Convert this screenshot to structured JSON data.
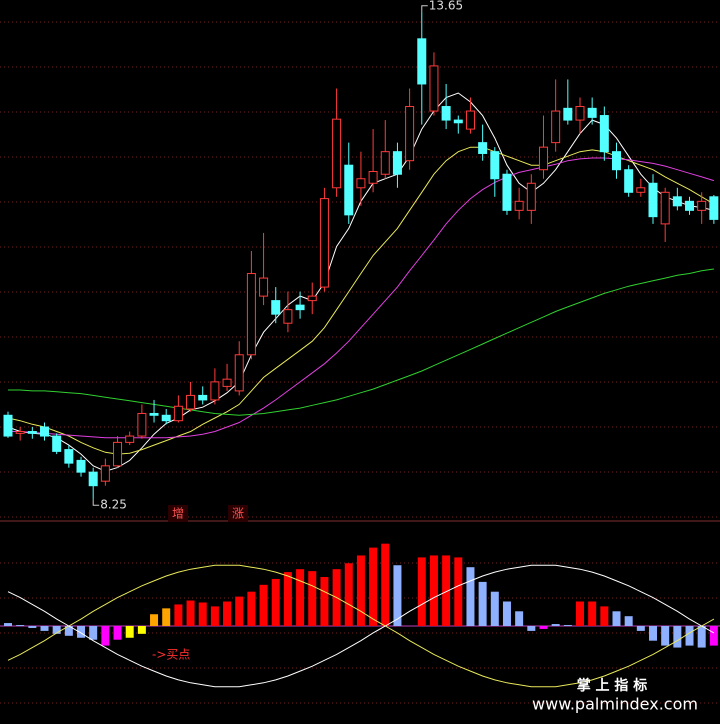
{
  "chart_data": [
    {
      "type": "candlestick",
      "up_color": "#ff3b3b",
      "down_color": "#54ffff",
      "ylim": [
        8.02,
        13.78
      ],
      "grid": true,
      "high_label": "13.65",
      "low_label": "8.25",
      "open": [
        9.18,
        8.98,
        9.0,
        9.05,
        8.95,
        8.8,
        8.68,
        8.55,
        8.45,
        8.62,
        8.88,
        8.95,
        9.2,
        9.18,
        9.12,
        9.25,
        9.4,
        9.35,
        9.5,
        9.45,
        9.85,
        10.5,
        10.45,
        10.2,
        10.4,
        10.45,
        10.6,
        11.7,
        11.95,
        11.7,
        11.75,
        11.85,
        12.1,
        12.0,
        13.35,
        12.55,
        12.6,
        12.45,
        12.35,
        12.2,
        12.1,
        11.85,
        11.45,
        11.45,
        11.9,
        12.2,
        12.58,
        12.45,
        12.58,
        12.5,
        12.1,
        11.9,
        11.65,
        11.75,
        11.3,
        11.6,
        11.55,
        11.45,
        11.6
      ],
      "close": [
        8.95,
        9.0,
        8.98,
        8.95,
        8.78,
        8.65,
        8.55,
        8.4,
        8.62,
        8.88,
        8.95,
        9.2,
        9.18,
        9.12,
        9.28,
        9.4,
        9.35,
        9.55,
        9.58,
        9.85,
        10.75,
        10.7,
        10.3,
        10.35,
        10.35,
        10.5,
        11.58,
        12.46,
        11.4,
        11.8,
        11.88,
        12.1,
        11.85,
        12.6,
        12.85,
        13.05,
        12.45,
        12.42,
        12.55,
        12.08,
        11.8,
        11.45,
        11.55,
        11.75,
        12.15,
        12.55,
        12.45,
        12.6,
        12.48,
        12.1,
        11.9,
        11.65,
        11.7,
        11.38,
        11.65,
        11.5,
        11.45,
        11.55,
        11.35
      ],
      "high": [
        9.22,
        9.05,
        9.05,
        9.1,
        8.98,
        8.85,
        8.72,
        8.6,
        8.7,
        8.95,
        9.0,
        9.3,
        9.35,
        9.25,
        9.4,
        9.55,
        9.5,
        9.7,
        9.75,
        10.0,
        11.0,
        11.2,
        10.6,
        10.55,
        10.55,
        10.65,
        11.7,
        12.8,
        12.2,
        12.1,
        12.35,
        12.45,
        12.2,
        12.8,
        13.65,
        13.2,
        12.85,
        12.5,
        12.7,
        12.4,
        12.15,
        11.9,
        11.7,
        11.85,
        12.5,
        12.9,
        12.9,
        12.7,
        12.7,
        12.6,
        12.2,
        11.95,
        11.8,
        11.85,
        11.7,
        11.7,
        11.6,
        11.65,
        11.62
      ],
      "low": [
        8.93,
        8.9,
        8.92,
        8.9,
        8.75,
        8.6,
        8.5,
        8.25,
        8.4,
        8.6,
        8.85,
        8.92,
        9.1,
        9.08,
        9.1,
        9.22,
        9.3,
        9.3,
        9.45,
        9.4,
        9.8,
        10.4,
        10.2,
        10.1,
        10.25,
        10.3,
        10.55,
        11.6,
        11.3,
        11.5,
        11.65,
        11.8,
        11.7,
        11.9,
        12.4,
        12.5,
        12.35,
        12.3,
        12.3,
        12.0,
        11.6,
        11.4,
        11.35,
        11.3,
        11.8,
        12.1,
        12.4,
        12.3,
        12.4,
        12.0,
        11.8,
        11.6,
        11.6,
        11.3,
        11.1,
        11.45,
        11.4,
        11.3,
        11.3
      ],
      "series": [
        {
          "color": "#ffffff",
          "values": [
            9.05,
            9.0,
            8.98,
            8.97,
            8.93,
            8.85,
            8.75,
            8.62,
            8.56,
            8.6,
            8.68,
            8.82,
            8.97,
            9.09,
            9.15,
            9.24,
            9.27,
            9.34,
            9.43,
            9.55,
            9.85,
            10.1,
            10.25,
            10.4,
            10.5,
            10.45,
            10.65,
            11.05,
            11.25,
            11.55,
            11.75,
            11.8,
            11.85,
            12.05,
            12.35,
            12.55,
            12.7,
            12.75,
            12.65,
            12.5,
            12.25,
            11.95,
            11.75,
            11.65,
            11.75,
            11.9,
            12.1,
            12.3,
            12.45,
            12.4,
            12.25,
            12.05,
            11.85,
            11.7,
            11.6,
            11.55,
            11.5,
            11.48,
            11.45
          ]
        },
        {
          "color": "#e8e85a",
          "values": [
            9.15,
            9.12,
            9.08,
            9.05,
            9.0,
            8.95,
            8.88,
            8.82,
            8.77,
            8.75,
            8.76,
            8.8,
            8.85,
            8.9,
            8.95,
            9.0,
            9.08,
            9.15,
            9.22,
            9.3,
            9.45,
            9.6,
            9.7,
            9.8,
            9.9,
            10.0,
            10.15,
            10.35,
            10.55,
            10.75,
            10.95,
            11.1,
            11.25,
            11.45,
            11.65,
            11.85,
            12.0,
            12.1,
            12.15,
            12.15,
            12.1,
            12.05,
            12.0,
            11.95,
            11.95,
            12.0,
            12.05,
            12.1,
            12.12,
            12.1,
            12.05,
            12.0,
            11.95,
            11.9,
            11.82,
            11.75,
            11.68,
            11.6,
            11.52
          ]
        },
        {
          "color": "#e040e0",
          "values": [
            9.0,
            9.0,
            8.99,
            8.98,
            8.97,
            8.96,
            8.95,
            8.94,
            8.93,
            8.93,
            8.93,
            8.93,
            8.93,
            8.93,
            8.94,
            8.95,
            8.97,
            9.0,
            9.05,
            9.1,
            9.18,
            9.26,
            9.35,
            9.45,
            9.55,
            9.65,
            9.75,
            9.87,
            10.0,
            10.15,
            10.3,
            10.45,
            10.6,
            10.78,
            10.95,
            11.12,
            11.3,
            11.45,
            11.58,
            11.68,
            11.76,
            11.82,
            11.87,
            11.9,
            11.93,
            11.96,
            12.0,
            12.02,
            12.03,
            12.03,
            12.02,
            12.01,
            11.99,
            11.97,
            11.94,
            11.9,
            11.86,
            11.82,
            11.78
          ]
        },
        {
          "color": "#30d030",
          "values": [
            9.46,
            9.46,
            9.45,
            9.45,
            9.44,
            9.43,
            9.42,
            9.4,
            9.38,
            9.36,
            9.34,
            9.32,
            9.3,
            9.28,
            9.26,
            9.24,
            9.22,
            9.2,
            9.19,
            9.18,
            9.19,
            9.2,
            9.22,
            9.24,
            9.26,
            9.29,
            9.32,
            9.35,
            9.39,
            9.43,
            9.47,
            9.52,
            9.57,
            9.62,
            9.67,
            9.73,
            9.79,
            9.85,
            9.91,
            9.97,
            10.03,
            10.09,
            10.15,
            10.21,
            10.27,
            10.33,
            10.38,
            10.43,
            10.48,
            10.53,
            10.57,
            10.61,
            10.64,
            10.67,
            10.7,
            10.73,
            10.75,
            10.78,
            10.8
          ]
        }
      ]
    },
    {
      "type": "bar",
      "ylim": [
        -100,
        100
      ],
      "grid": true,
      "values": [
        3,
        1,
        -2,
        -5,
        -8,
        -10,
        -12,
        -14,
        -20,
        -14,
        -12,
        -8,
        12,
        18,
        22,
        26,
        24,
        20,
        25,
        30,
        35,
        42,
        48,
        55,
        58,
        56,
        50,
        58,
        64,
        72,
        80,
        84,
        62,
        0,
        70,
        72,
        72,
        70,
        60,
        45,
        35,
        25,
        15,
        -5,
        -3,
        2,
        1,
        25,
        25,
        20,
        15,
        10,
        -5,
        -15,
        -20,
        -22,
        -20,
        -22,
        -20
      ],
      "colors": [
        "#8fb0ff",
        "#8fb0ff",
        "#8fb0ff",
        "#8fb0ff",
        "#8fb0ff",
        "#8fb0ff",
        "#8fb0ff",
        "#8fb0ff",
        "#ff00ff",
        "#ff00ff",
        "#ffff00",
        "#ffff00",
        "#ffa500",
        "#ffa500",
        "#ff0000",
        "#ff0000",
        "#ff0000",
        "#ff0000",
        "#ff0000",
        "#ff0000",
        "#ff0000",
        "#ff0000",
        "#ff0000",
        "#ff0000",
        "#ff0000",
        "#ff0000",
        "#ff0000",
        "#ff0000",
        "#ff0000",
        "#ff0000",
        "#ff0000",
        "#ff0000",
        "#8fb0ff",
        "#8fb0ff",
        "#ff0000",
        "#ff0000",
        "#ff0000",
        "#ff0000",
        "#8fb0ff",
        "#8fb0ff",
        "#8fb0ff",
        "#8fb0ff",
        "#8fb0ff",
        "#8fb0ff",
        "#ff00ff",
        "#8fb0ff",
        "#8fb0ff",
        "#ff0000",
        "#ff0000",
        "#ff0000",
        "#8fb0ff",
        "#8fb0ff",
        "#8fb0ff",
        "#8fb0ff",
        "#8fb0ff",
        "#8fb0ff",
        "#8fb0ff",
        "#8fb0ff",
        "#ff00ff"
      ],
      "series": [
        {
          "color": "#e8e85a",
          "values": [
            -35,
            -29,
            -22,
            -15,
            -7,
            0,
            7,
            15,
            22,
            29,
            35,
            41,
            46,
            51,
            55,
            58,
            60,
            62,
            62,
            62,
            60,
            58,
            55,
            51,
            46,
            41,
            35,
            29,
            22,
            15,
            7,
            0,
            -7,
            -15,
            -22,
            -29,
            -35,
            -41,
            -46,
            -51,
            -55,
            -58,
            -60,
            -62,
            -62,
            -62,
            -60,
            -58,
            -55,
            -51,
            -46,
            -41,
            -35,
            -29,
            -22,
            -15,
            -7,
            0,
            7
          ]
        },
        {
          "color": "#ffffff",
          "values": [
            35,
            29,
            22,
            15,
            7,
            0,
            -7,
            -15,
            -22,
            -29,
            -35,
            -41,
            -46,
            -51,
            -55,
            -58,
            -60,
            -62,
            -62,
            -62,
            -60,
            -58,
            -55,
            -51,
            -46,
            -41,
            -35,
            -29,
            -22,
            -15,
            -7,
            0,
            7,
            15,
            22,
            29,
            35,
            41,
            46,
            51,
            55,
            58,
            60,
            62,
            62,
            62,
            60,
            58,
            55,
            51,
            46,
            41,
            35,
            29,
            22,
            15,
            7,
            0,
            -7
          ]
        }
      ]
    }
  ],
  "markers": [
    "增",
    "涨"
  ],
  "signal": "->买点",
  "watermark": {
    "title": "掌 上 指 标",
    "url": "www.palmindex.com"
  }
}
